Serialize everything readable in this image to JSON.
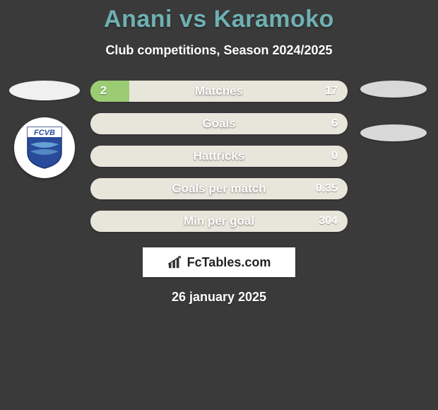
{
  "colors": {
    "background": "#3a3a3a",
    "title": "#6fb0b2",
    "subtitle": "#ffffff",
    "bar_label": "#ffffff",
    "bar_value": "#ffffff",
    "date": "#ffffff",
    "bar_left_fill": "#9bcb73",
    "bar_base": "#e8e6db",
    "badge_primary": "#2a4b9b",
    "badge_stripe": "#6fb0e0"
  },
  "title": "Anani vs Karamoko",
  "subtitle": "Club competitions, Season 2024/2025",
  "bars": [
    {
      "label": "Matches",
      "left": "2",
      "right": "17",
      "left_pct": 15,
      "right_pct": 0
    },
    {
      "label": "Goals",
      "left": "",
      "right": "6",
      "left_pct": 0,
      "right_pct": 0
    },
    {
      "label": "Hattricks",
      "left": "",
      "right": "0",
      "left_pct": 0,
      "right_pct": 0
    },
    {
      "label": "Goals per match",
      "left": "",
      "right": "0.35",
      "left_pct": 0,
      "right_pct": 0
    },
    {
      "label": "Min per goal",
      "left": "",
      "right": "304",
      "left_pct": 0,
      "right_pct": 0
    }
  ],
  "footer_brand": "FcTables.com",
  "date": "26 january 2025",
  "club_badge_text": "FCVB",
  "side_right_ellipses": 2
}
